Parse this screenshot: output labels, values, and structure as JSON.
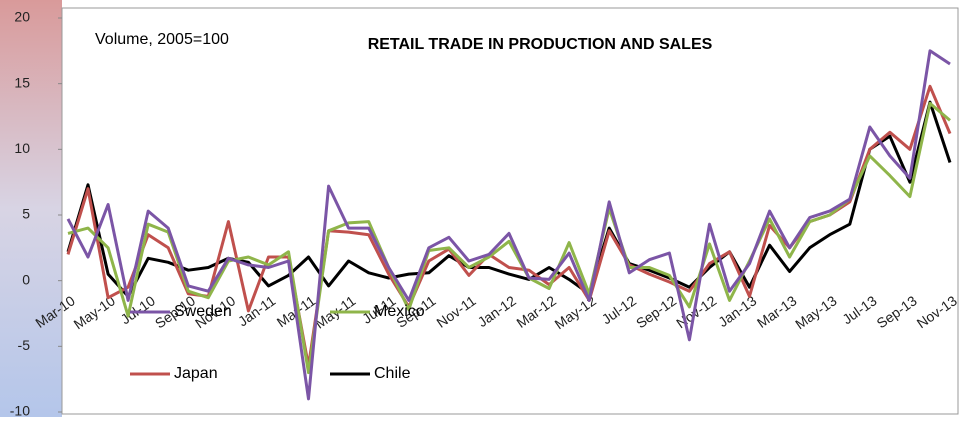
{
  "chart_data": {
    "type": "line",
    "title": "RETAIL TRADE IN PRODUCTION AND SALES",
    "subtitle": "Volume, 2005=100",
    "categories": [
      "Mar-10",
      null,
      "May-10",
      null,
      "Jul-10",
      null,
      "Sep-10",
      null,
      "Nov-10",
      null,
      "Jan-11",
      null,
      "Mar-11",
      null,
      "May-11",
      null,
      "Jul-11",
      null,
      "Sep-11",
      null,
      "Nov-11",
      null,
      "Jan-12",
      null,
      "Mar-12",
      null,
      "May-12",
      null,
      "Jul-12",
      null,
      "Sep-12",
      null,
      "Nov-12",
      null,
      "Jan-13",
      null,
      "Mar-13",
      null,
      "May-13",
      null,
      "Jul-13",
      null,
      "Sep-13",
      null,
      "Nov-13"
    ],
    "series": [
      {
        "name": "Sweden",
        "color": "#7b55a6",
        "values": [
          4.7,
          1.8,
          5.8,
          -1.5,
          5.3,
          4.0,
          -0.4,
          -0.8,
          1.7,
          1.2,
          1.0,
          1.5,
          -9,
          7.2,
          4,
          4,
          1,
          -1.5,
          2.5,
          3.3,
          1.5,
          2,
          3.6,
          0.2,
          0.1,
          2.1,
          -1.5,
          6,
          0.6,
          1.6,
          2.1,
          -4.5,
          4.3,
          -0.8,
          1.3,
          5.3,
          2.5,
          4.8,
          5.3,
          6.2,
          11.7,
          9.5,
          7.8,
          17.5,
          16.5
        ]
      },
      {
        "name": "Mexico",
        "color": "#8fb54a",
        "values": [
          3.6,
          4.0,
          2.5,
          -2.7,
          4.3,
          3.7,
          -0.8,
          -1.3,
          1.5,
          1.8,
          1.2,
          2.2,
          -7,
          3.8,
          4.4,
          4.5,
          1.0,
          -2.2,
          2.3,
          2.5,
          1.0,
          1.8,
          3.0,
          0.2,
          -0.6,
          2.9,
          -1.0,
          5.5,
          1.0,
          1.0,
          0.4,
          -2.0,
          2.8,
          -1.5,
          1.5,
          4.7,
          1.8,
          4.5,
          5.0,
          6.2,
          9.5,
          8.0,
          6.4,
          13.5,
          12.2
        ]
      },
      {
        "name": "Japan",
        "color": "#c0504d",
        "values": [
          2.0,
          7.0,
          -1.3,
          -0.5,
          3.5,
          2.5,
          -1.0,
          -1.2,
          4.5,
          -2.3,
          1.8,
          1.8,
          -6.5,
          3.8,
          3.7,
          3.5,
          0.5,
          -2.0,
          1.5,
          2.4,
          0.4,
          2.0,
          1.0,
          0.8,
          -0.3,
          1.0,
          -1.5,
          3.8,
          1.2,
          0.5,
          -0.1,
          -0.8,
          1.3,
          2.2,
          -1.2,
          4.2,
          2.5,
          4.5,
          5.0,
          6.0,
          10.0,
          11.3,
          10.0,
          14.8,
          11.2
        ]
      },
      {
        "name": "Chile",
        "color": "#000000",
        "values": [
          2.2,
          7.3,
          0.5,
          -1.2,
          1.7,
          1.4,
          0.8,
          1.0,
          1.7,
          1.4,
          -0.4,
          0.4,
          1.8,
          -0.4,
          1.5,
          0.6,
          0.2,
          0.5,
          0.6,
          1.9,
          1.0,
          1.0,
          0.5,
          0.1,
          1.0,
          0.1,
          -1.0,
          4.0,
          1.3,
          0.8,
          0.2,
          -0.5,
          1.0,
          2.2,
          -0.5,
          2.7,
          0.7,
          2.5,
          3.5,
          4.3,
          10.0,
          11.0,
          7.5,
          13.6,
          9.0
        ]
      }
    ],
    "ylim": [
      -10,
      20
    ],
    "yticks": [
      -10,
      -5,
      0,
      5,
      10,
      15,
      20
    ]
  }
}
